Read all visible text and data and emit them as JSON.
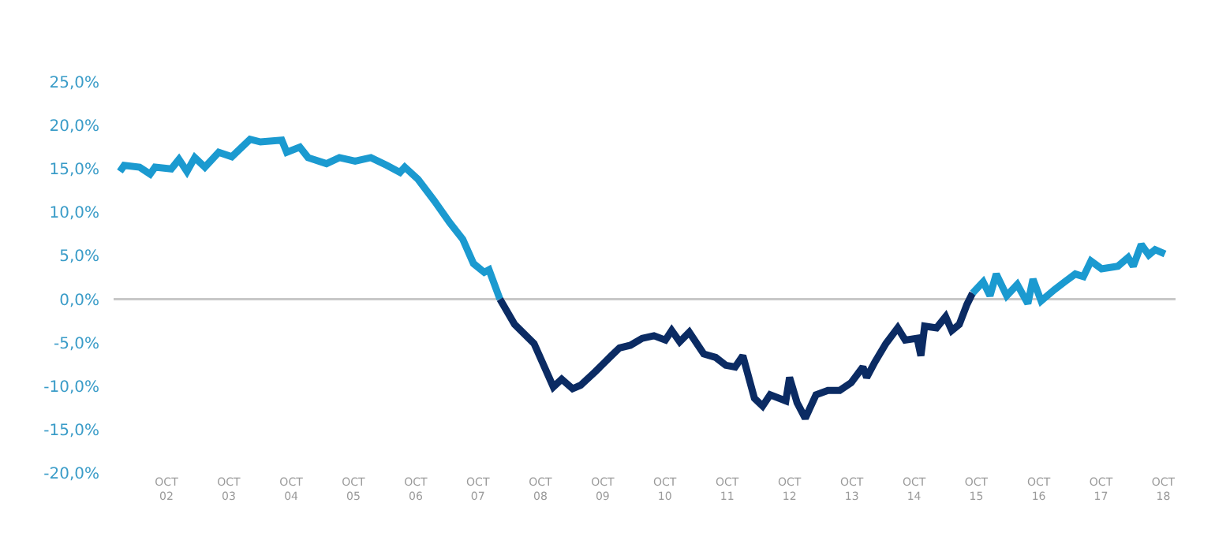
{
  "chart_data": {
    "type": "line",
    "xlim": [
      "2001-11-25",
      "2018-12-12"
    ],
    "ylim": [
      -20,
      25
    ],
    "xticks": [
      {
        "value": "2002-10-01",
        "label": "OCT\n02"
      },
      {
        "value": "2003-10-01",
        "label": "OCT\n03"
      },
      {
        "value": "2004-10-01",
        "label": "OCT\n04"
      },
      {
        "value": "2005-10-01",
        "label": "OCT\n05"
      },
      {
        "value": "2006-10-01",
        "label": "OCT\n06"
      },
      {
        "value": "2007-10-01",
        "label": "OCT\n07"
      },
      {
        "value": "2008-10-01",
        "label": "OCT\n08"
      },
      {
        "value": "2009-10-01",
        "label": "OCT\n09"
      },
      {
        "value": "2010-10-01",
        "label": "OCT\n10"
      },
      {
        "value": "2011-10-01",
        "label": "OCT\n11"
      },
      {
        "value": "2012-10-01",
        "label": "OCT\n12"
      },
      {
        "value": "2013-10-01",
        "label": "OCT\n13"
      },
      {
        "value": "2014-10-01",
        "label": "OCT\n14"
      },
      {
        "value": "2015-10-01",
        "label": "OCT\n15"
      },
      {
        "value": "2016-10-01",
        "label": "OCT\n16"
      },
      {
        "value": "2017-10-01",
        "label": "OCT\n17"
      },
      {
        "value": "2018-10-01",
        "label": "OCT\n18"
      }
    ],
    "yticks": [
      {
        "value": 25,
        "label": "25,0%"
      },
      {
        "value": 20,
        "label": "20,0%"
      },
      {
        "value": 15,
        "label": "15,0%"
      },
      {
        "value": 10,
        "label": "10,0%"
      },
      {
        "value": 5,
        "label": "5,0%"
      },
      {
        "value": 0,
        "label": "0,0%"
      },
      {
        "value": -5,
        "label": "-5,0%"
      },
      {
        "value": -10,
        "label": "-10,0%"
      },
      {
        "value": -15,
        "label": "-15,0%"
      },
      {
        "value": -20,
        "label": "-20,0%"
      }
    ],
    "grid": false,
    "marker": "none",
    "line_style": "solid",
    "ref_lines": [
      {
        "axis": "y",
        "value": 0,
        "color": "#c8c8c8"
      }
    ],
    "series": [
      {
        "color": "#1b9ad0",
        "x": [
          "2002-01-01",
          "2002-01-26",
          "2002-04-26",
          "2002-06-27",
          "2002-07-26",
          "2002-10-29",
          "2002-12-13",
          "2003-01-29",
          "2003-03-16",
          "2003-05-14",
          "2003-08-03",
          "2003-10-19",
          "2004-02-03",
          "2004-04-04",
          "2004-08-07",
          "2004-09-05",
          "2004-11-21",
          "2005-01-08",
          "2005-04-26",
          "2005-07-11",
          "2005-10-11",
          "2006-01-11",
          "2006-04-15",
          "2006-07-01",
          "2006-07-29",
          "2006-10-15",
          "2007-01-19",
          "2007-04-19",
          "2007-07-04",
          "2007-09-05",
          "2007-11-07",
          "2007-12-05",
          "2008-02-07"
        ],
        "values": [
          14.7,
          15.4,
          15.2,
          14.4,
          15.2,
          15.0,
          16.1,
          14.7,
          16.3,
          15.2,
          16.9,
          16.4,
          18.4,
          18.1,
          18.3,
          16.9,
          17.5,
          16.3,
          15.6,
          16.3,
          15.9,
          16.3,
          15.4,
          14.6,
          15.2,
          13.8,
          11.3,
          8.8,
          6.9,
          4.1,
          3.1,
          3.4,
          0
        ]
      },
      {
        "color": "#0b2b63",
        "x": [
          "2008-02-07",
          "2008-05-03",
          "2008-08-25",
          "2008-12-16",
          "2009-02-03",
          "2009-04-08",
          "2009-05-25",
          "2009-08-21",
          "2009-11-21",
          "2010-01-08",
          "2010-03-13",
          "2010-05-21",
          "2010-07-29",
          "2010-10-04",
          "2010-11-10",
          "2010-12-27",
          "2011-02-21",
          "2011-05-17",
          "2011-07-26",
          "2011-09-23",
          "2011-11-17",
          "2012-01-01",
          "2012-03-09",
          "2012-04-26",
          "2012-06-09",
          "2012-09-09",
          "2012-10-01",
          "2012-11-14",
          "2013-01-01",
          "2013-03-05",
          "2013-05-14",
          "2013-07-22",
          "2013-09-27",
          "2013-12-05",
          "2013-12-27",
          "2014-02-14",
          "2014-04-19",
          "2014-06-27",
          "2014-08-10",
          "2014-10-19",
          "2014-11-10",
          "2014-12-02",
          "2015-02-10",
          "2015-04-04",
          "2015-05-10",
          "2015-06-23",
          "2015-08-07",
          "2015-09-09"
        ],
        "values": [
          0,
          -2.9,
          -5.1,
          -10.1,
          -9.2,
          -10.3,
          -9.9,
          -8.3,
          -6.5,
          -5.6,
          -5.3,
          -4.5,
          -4.2,
          -4.7,
          -3.6,
          -4.9,
          -3.8,
          -6.3,
          -6.7,
          -7.6,
          -7.8,
          -6.5,
          -11.4,
          -12.3,
          -11.0,
          -11.7,
          -9.0,
          -11.9,
          -13.7,
          -11.0,
          -10.5,
          -10.5,
          -9.6,
          -7.8,
          -9.0,
          -7.2,
          -5.1,
          -3.3,
          -4.7,
          -4.5,
          -6.5,
          -3.1,
          -3.3,
          -2.0,
          -3.6,
          -2.9,
          -0.6,
          0.7
        ]
      },
      {
        "color": "#1b9ad0",
        "x": [
          "2015-09-09",
          "2015-11-10",
          "2015-12-20",
          "2016-01-26",
          "2016-03-27",
          "2016-05-28",
          "2016-07-29",
          "2016-08-28",
          "2016-10-15",
          "2017-01-01",
          "2017-03-02",
          "2017-05-03",
          "2017-06-20",
          "2017-08-03",
          "2017-10-04",
          "2018-01-08",
          "2018-03-09",
          "2018-04-08",
          "2018-05-25",
          "2018-07-08",
          "2018-08-14",
          "2018-10-11"
        ],
        "values": [
          0.7,
          2.0,
          0.4,
          2.9,
          0.4,
          1.7,
          -0.5,
          2.3,
          -0.2,
          1.1,
          2.0,
          2.9,
          2.6,
          4.4,
          3.5,
          3.8,
          4.8,
          3.8,
          6.3,
          5.1,
          5.7,
          5.2
        ]
      }
    ]
  }
}
